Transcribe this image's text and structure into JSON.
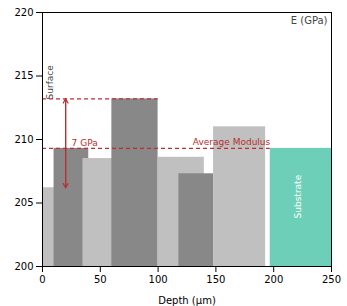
{
  "chart_data": {
    "type": "bar",
    "title": "E (GPa)",
    "xlabel": "Depth (μm)",
    "xlim": [
      0,
      250
    ],
    "ylim": [
      200,
      220
    ],
    "xticks": [
      0,
      50,
      100,
      150,
      200,
      250
    ],
    "yticks": [
      200,
      205,
      210,
      215,
      220
    ],
    "grid": false,
    "x": [
      0,
      10,
      35,
      60,
      100,
      118,
      148,
      197
    ],
    "x_end": [
      35,
      40,
      85,
      100,
      140,
      148,
      193,
      250
    ],
    "values": [
      206.2,
      209.3,
      208.5,
      213.2,
      208.6,
      207.3,
      211.0,
      209.3
    ],
    "colors": [
      "#c0c0c0",
      "#888888",
      "#c0c0c0",
      "#888888",
      "#c0c0c0",
      "#888888",
      "#c0c0c0",
      "#6ecfb8"
    ],
    "reference_lines": [
      {
        "label": "Average Modulus",
        "y": 209.3,
        "x_range": [
          0,
          197
        ],
        "color": "#b83030"
      },
      {
        "y": 213.2,
        "x_range": [
          0,
          100
        ],
        "color": "#b83030"
      }
    ],
    "arrow": {
      "label": "7 GPa",
      "x": 20,
      "y_range": [
        206.2,
        213.2
      ],
      "color": "#b83030"
    },
    "region_labels": [
      {
        "text": "Surface",
        "x": 7,
        "y": 214.5,
        "color": "#444444"
      },
      {
        "text": "Substrate",
        "x": 221,
        "y": 205.5,
        "color": "#ffffff"
      }
    ]
  }
}
